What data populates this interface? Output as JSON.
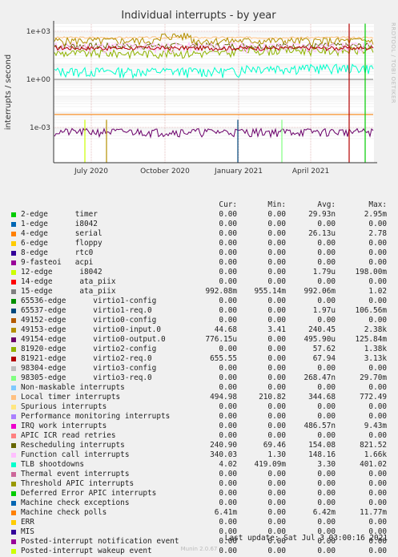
{
  "chart_data": {
    "type": "line",
    "title": "Individual interrupts - by year",
    "ylabel": "interrupts / second",
    "yscale": "log",
    "ylim": [
      0.0001,
      5000
    ],
    "yticks": [
      "1e+03",
      "1e+00",
      "1e-03"
    ],
    "xticks": [
      "July 2020",
      "October 2020",
      "January 2021",
      "April 2021"
    ],
    "grid": true,
    "columns": [
      "Cur:",
      "Min:",
      "Avg:",
      "Max:"
    ],
    "series": [
      {
        "name": "2-edge      timer",
        "color": "#00cc00",
        "cur": "0.00",
        "min": "0.00",
        "avg": "29.93n",
        "max": "2.95m"
      },
      {
        "name": "1-edge      i8042",
        "color": "#0066b3",
        "cur": "0.00",
        "min": "0.00",
        "avg": "0.00",
        "max": "0.00"
      },
      {
        "name": "4-edge      serial",
        "color": "#ff8000",
        "cur": "0.00",
        "min": "0.00",
        "avg": "26.13u",
        "max": "2.78"
      },
      {
        "name": "6-edge      floppy",
        "color": "#ffcc00",
        "cur": "0.00",
        "min": "0.00",
        "avg": "0.00",
        "max": "0.00"
      },
      {
        "name": "8-edge      rtc0",
        "color": "#330099",
        "cur": "0.00",
        "min": "0.00",
        "avg": "0.00",
        "max": "0.00"
      },
      {
        "name": "9-fasteoi   acpi",
        "color": "#990099",
        "cur": "0.00",
        "min": "0.00",
        "avg": "0.00",
        "max": "0.00"
      },
      {
        "name": "12-edge      i8042",
        "color": "#ccff00",
        "cur": "0.00",
        "min": "0.00",
        "avg": "1.79u",
        "max": "198.00m"
      },
      {
        "name": "14-edge      ata_piix",
        "color": "#ff0000",
        "cur": "0.00",
        "min": "0.00",
        "avg": "0.00",
        "max": "0.00"
      },
      {
        "name": "15-edge      ata_piix",
        "color": "#808080",
        "cur": "992.08m",
        "min": "955.14m",
        "avg": "992.06m",
        "max": "1.02"
      },
      {
        "name": "65536-edge      virtio1-config",
        "color": "#008f00",
        "cur": "0.00",
        "min": "0.00",
        "avg": "0.00",
        "max": "0.00"
      },
      {
        "name": "65537-edge      virtio1-req.0",
        "color": "#00487d",
        "cur": "0.00",
        "min": "0.00",
        "avg": "1.97u",
        "max": "106.56m"
      },
      {
        "name": "49152-edge      virtio0-config",
        "color": "#b35a00",
        "cur": "0.00",
        "min": "0.00",
        "avg": "0.00",
        "max": "0.00"
      },
      {
        "name": "49153-edge      virtio0-input.0",
        "color": "#b38f00",
        "cur": "44.68",
        "min": "3.41",
        "avg": "240.45",
        "max": "2.38k"
      },
      {
        "name": "49154-edge      virtio0-output.0",
        "color": "#6b006b",
        "cur": "776.15u",
        "min": "0.00",
        "avg": "495.90u",
        "max": "125.84m"
      },
      {
        "name": "81920-edge      virtio2-config",
        "color": "#8fb300",
        "cur": "0.00",
        "min": "0.00",
        "avg": "57.62",
        "max": "1.38k"
      },
      {
        "name": "81921-edge      virtio2-req.0",
        "color": "#b30000",
        "cur": "655.55",
        "min": "0.00",
        "avg": "67.94",
        "max": "3.13k"
      },
      {
        "name": "98304-edge      virtio3-config",
        "color": "#bebebe",
        "cur": "0.00",
        "min": "0.00",
        "avg": "0.00",
        "max": "0.00"
      },
      {
        "name": "98305-edge      virtio3-req.0",
        "color": "#80ff80",
        "cur": "0.00",
        "min": "0.00",
        "avg": "268.47n",
        "max": "29.70m"
      },
      {
        "name": "Non-maskable interrupts",
        "color": "#80c9ff",
        "cur": "0.00",
        "min": "0.00",
        "avg": "0.00",
        "max": "0.00"
      },
      {
        "name": "Local timer interrupts",
        "color": "#ffc080",
        "cur": "494.98",
        "min": "210.82",
        "avg": "344.68",
        "max": "772.49"
      },
      {
        "name": "Spurious interrupts",
        "color": "#ffe680",
        "cur": "0.00",
        "min": "0.00",
        "avg": "0.00",
        "max": "0.00"
      },
      {
        "name": "Performance monitoring interrupts",
        "color": "#aa80ff",
        "cur": "0.00",
        "min": "0.00",
        "avg": "0.00",
        "max": "0.00"
      },
      {
        "name": "IRQ work interrupts",
        "color": "#ee00cc",
        "cur": "0.00",
        "min": "0.00",
        "avg": "486.57n",
        "max": "9.43m"
      },
      {
        "name": "APIC ICR read retries",
        "color": "#ff8080",
        "cur": "0.00",
        "min": "0.00",
        "avg": "0.00",
        "max": "0.00"
      },
      {
        "name": "Rescheduling interrupts",
        "color": "#666600",
        "cur": "240.90",
        "min": "69.46",
        "avg": "154.08",
        "max": "821.52"
      },
      {
        "name": "Function call interrupts",
        "color": "#ffbfff",
        "cur": "340.03",
        "min": "1.30",
        "avg": "148.16",
        "max": "1.66k"
      },
      {
        "name": "TLB shootdowns",
        "color": "#00ffcc",
        "cur": "4.02",
        "min": "419.09m",
        "avg": "3.30",
        "max": "401.02"
      },
      {
        "name": "Thermal event interrupts",
        "color": "#cc6699",
        "cur": "0.00",
        "min": "0.00",
        "avg": "0.00",
        "max": "0.00"
      },
      {
        "name": "Threshold APIC interrupts",
        "color": "#999900",
        "cur": "0.00",
        "min": "0.00",
        "avg": "0.00",
        "max": "0.00"
      },
      {
        "name": "Deferred Error APIC interrupts",
        "color": "#00cc00",
        "cur": "0.00",
        "min": "0.00",
        "avg": "0.00",
        "max": "0.00"
      },
      {
        "name": "Machine check exceptions",
        "color": "#0066b3",
        "cur": "0.00",
        "min": "0.00",
        "avg": "0.00",
        "max": "0.00"
      },
      {
        "name": "Machine check polls",
        "color": "#ff8000",
        "cur": "6.41m",
        "min": "0.00",
        "avg": "6.42m",
        "max": "11.77m"
      },
      {
        "name": "ERR",
        "color": "#ffcc00",
        "cur": "0.00",
        "min": "0.00",
        "avg": "0.00",
        "max": "0.00"
      },
      {
        "name": "MIS",
        "color": "#330099",
        "cur": "0.00",
        "min": "0.00",
        "avg": "0.00",
        "max": "0.00"
      },
      {
        "name": "Posted-interrupt notification event",
        "color": "#990099",
        "cur": "0.00",
        "min": "0.00",
        "avg": "0.00",
        "max": "0.00"
      },
      {
        "name": "Posted-interrupt wakeup event",
        "color": "#ccff00",
        "cur": "0.00",
        "min": "0.00",
        "avg": "0.00",
        "max": "0.00"
      }
    ],
    "last_update": "Last update:  Sat Jul  3 03:00:16 2021",
    "footer": "Munin 2.0.67",
    "side_label": "RRDTOOL / TOBI OETIKER"
  }
}
